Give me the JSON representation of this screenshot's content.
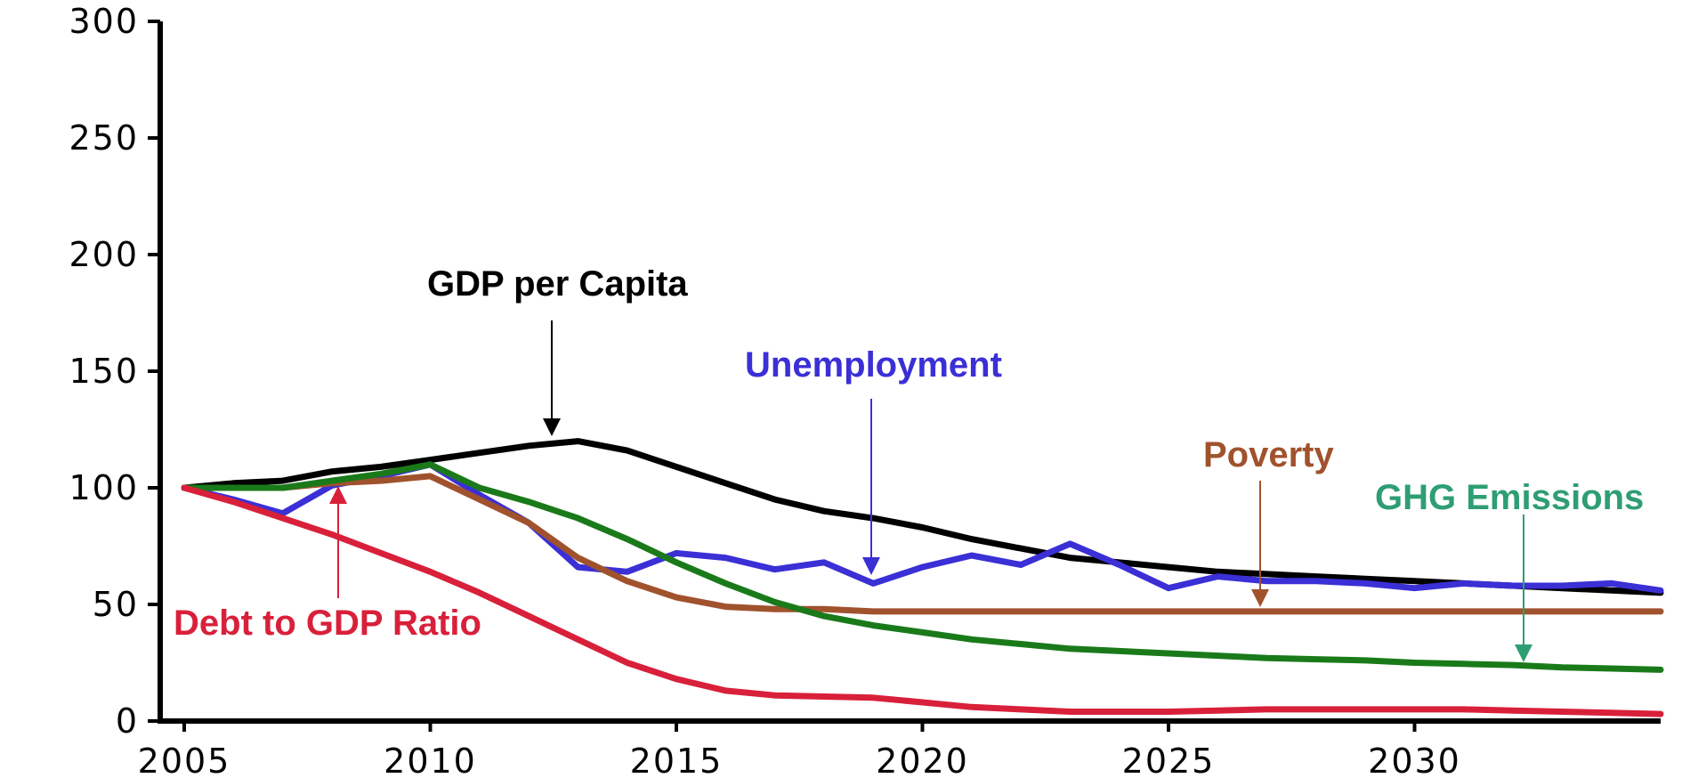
{
  "chart_data": {
    "type": "line",
    "title": "",
    "xlabel": "",
    "ylabel": "",
    "xlim": [
      2005,
      2035
    ],
    "ylim": [
      0,
      300
    ],
    "y_ticks": [
      0,
      50,
      100,
      150,
      200,
      250,
      300
    ],
    "x_ticks": [
      2005,
      2010,
      2015,
      2020,
      2025,
      2030
    ],
    "grid": false,
    "legend": "none",
    "series": [
      {
        "name": "GDP per Capita",
        "color": "#000000",
        "x": [
          2005,
          2006,
          2007,
          2008,
          2009,
          2010,
          2011,
          2012,
          2013,
          2014,
          2015,
          2016,
          2017,
          2018,
          2019,
          2020,
          2021,
          2022,
          2023,
          2024,
          2025,
          2026,
          2027,
          2028,
          2029,
          2030,
          2031,
          2032,
          2033,
          2034,
          2035
        ],
        "values": [
          100,
          102,
          103,
          107,
          109,
          112,
          115,
          118,
          120,
          116,
          109,
          102,
          95,
          90,
          87,
          83,
          78,
          74,
          70,
          68,
          66,
          64,
          63,
          62,
          61,
          60,
          59,
          58,
          57,
          56,
          55
        ]
      },
      {
        "name": "Unemployment",
        "color": "#3b2fd6",
        "x": [
          2005,
          2006,
          2007,
          2008,
          2009,
          2010,
          2011,
          2012,
          2013,
          2014,
          2015,
          2016,
          2017,
          2018,
          2019,
          2020,
          2021,
          2022,
          2023,
          2024,
          2025,
          2026,
          2027,
          2028,
          2029,
          2030,
          2031,
          2032,
          2033,
          2034,
          2035
        ],
        "values": [
          100,
          95,
          89,
          101,
          105,
          110,
          97,
          85,
          66,
          64,
          72,
          70,
          65,
          68,
          59,
          66,
          71,
          67,
          76,
          67,
          57,
          62,
          60,
          60,
          59,
          57,
          59,
          58,
          58,
          59,
          56
        ]
      },
      {
        "name": "Poverty",
        "color": "#a0522d",
        "x": [
          2005,
          2006,
          2007,
          2008,
          2009,
          2010,
          2011,
          2012,
          2013,
          2014,
          2015,
          2016,
          2017,
          2018,
          2019,
          2020,
          2021,
          2022,
          2023,
          2024,
          2025,
          2026,
          2027,
          2028,
          2029,
          2030,
          2031,
          2032,
          2033,
          2034,
          2035
        ],
        "values": [
          100,
          100,
          100,
          102,
          103,
          105,
          95,
          85,
          70,
          60,
          53,
          49,
          48,
          48,
          47,
          47,
          47,
          47,
          47,
          47,
          47,
          47,
          47,
          47,
          47,
          47,
          47,
          47,
          47,
          47,
          47
        ]
      },
      {
        "name": "GHG Emissions",
        "color": "#1a7a1a",
        "x": [
          2005,
          2006,
          2007,
          2008,
          2009,
          2010,
          2011,
          2012,
          2013,
          2014,
          2015,
          2016,
          2017,
          2018,
          2019,
          2020,
          2021,
          2022,
          2023,
          2024,
          2025,
          2026,
          2027,
          2028,
          2029,
          2030,
          2031,
          2032,
          2033,
          2034,
          2035
        ],
        "values": [
          100,
          100,
          100,
          103,
          106,
          110,
          100,
          94,
          87,
          78,
          68,
          59,
          51,
          45,
          41,
          38,
          35,
          33,
          31,
          30,
          29,
          28,
          27,
          26.5,
          26,
          25,
          24.5,
          24,
          23,
          22.5,
          22
        ]
      },
      {
        "name": "Debt to GDP Ratio",
        "color": "#d9203a",
        "x": [
          2005,
          2006,
          2007,
          2008,
          2009,
          2010,
          2011,
          2012,
          2013,
          2014,
          2015,
          2016,
          2017,
          2018,
          2019,
          2020,
          2021,
          2022,
          2023,
          2024,
          2025,
          2026,
          2027,
          2028,
          2029,
          2030,
          2031,
          2032,
          2033,
          2034,
          2035
        ],
        "values": [
          100,
          94,
          87,
          80,
          72,
          64,
          55,
          45,
          35,
          25,
          18,
          13,
          11,
          10.5,
          10,
          8,
          6,
          5,
          4,
          4,
          4,
          4.5,
          5,
          5,
          5,
          5,
          5,
          4.5,
          4,
          3.5,
          3
        ]
      }
    ],
    "annotations": [
      {
        "text": "GDP per Capita",
        "color": "#000000"
      },
      {
        "text": "Unemployment",
        "color": "#3b2fd6"
      },
      {
        "text": "Poverty",
        "color": "#a0522d"
      },
      {
        "text": "GHG Emissions",
        "color": "#2e9e73"
      },
      {
        "text": "Debt to GDP Ratio",
        "color": "#d9203a"
      }
    ]
  }
}
